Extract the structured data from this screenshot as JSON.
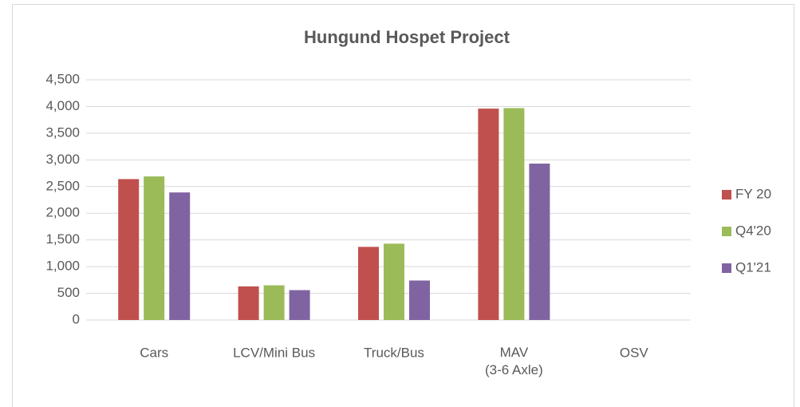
{
  "chart_data": {
    "type": "bar",
    "title": "Hungund Hospet Project",
    "categories": [
      "Cars",
      "LCV/Mini Bus",
      "Truck/Bus",
      "MAV\n(3-6 Axle)",
      "OSV"
    ],
    "series": [
      {
        "name": "FY 20",
        "color": "#c0504d",
        "values": [
          2640,
          630,
          1370,
          3960,
          null
        ]
      },
      {
        "name": "Q4'20",
        "color": "#9bbb59",
        "values": [
          2690,
          650,
          1430,
          3970,
          null
        ]
      },
      {
        "name": "Q1'21",
        "color": "#8064a2",
        "values": [
          2390,
          560,
          740,
          2930,
          null
        ]
      }
    ],
    "ylim": [
      0,
      4500
    ],
    "yticks": [
      0,
      500,
      {
        "value": 1000,
        "label": "1,000"
      },
      {
        "value": 1500,
        "label": "1,500"
      },
      {
        "value": 2000,
        "label": "2,000"
      },
      {
        "value": 2500,
        "label": "2,500"
      },
      {
        "value": 3000,
        "label": "3,000"
      },
      {
        "value": 3500,
        "label": "3,500"
      },
      {
        "value": 4000,
        "label": "4,000"
      },
      {
        "value": 4500,
        "label": "4,500"
      }
    ],
    "grid": true,
    "legend": "right"
  }
}
